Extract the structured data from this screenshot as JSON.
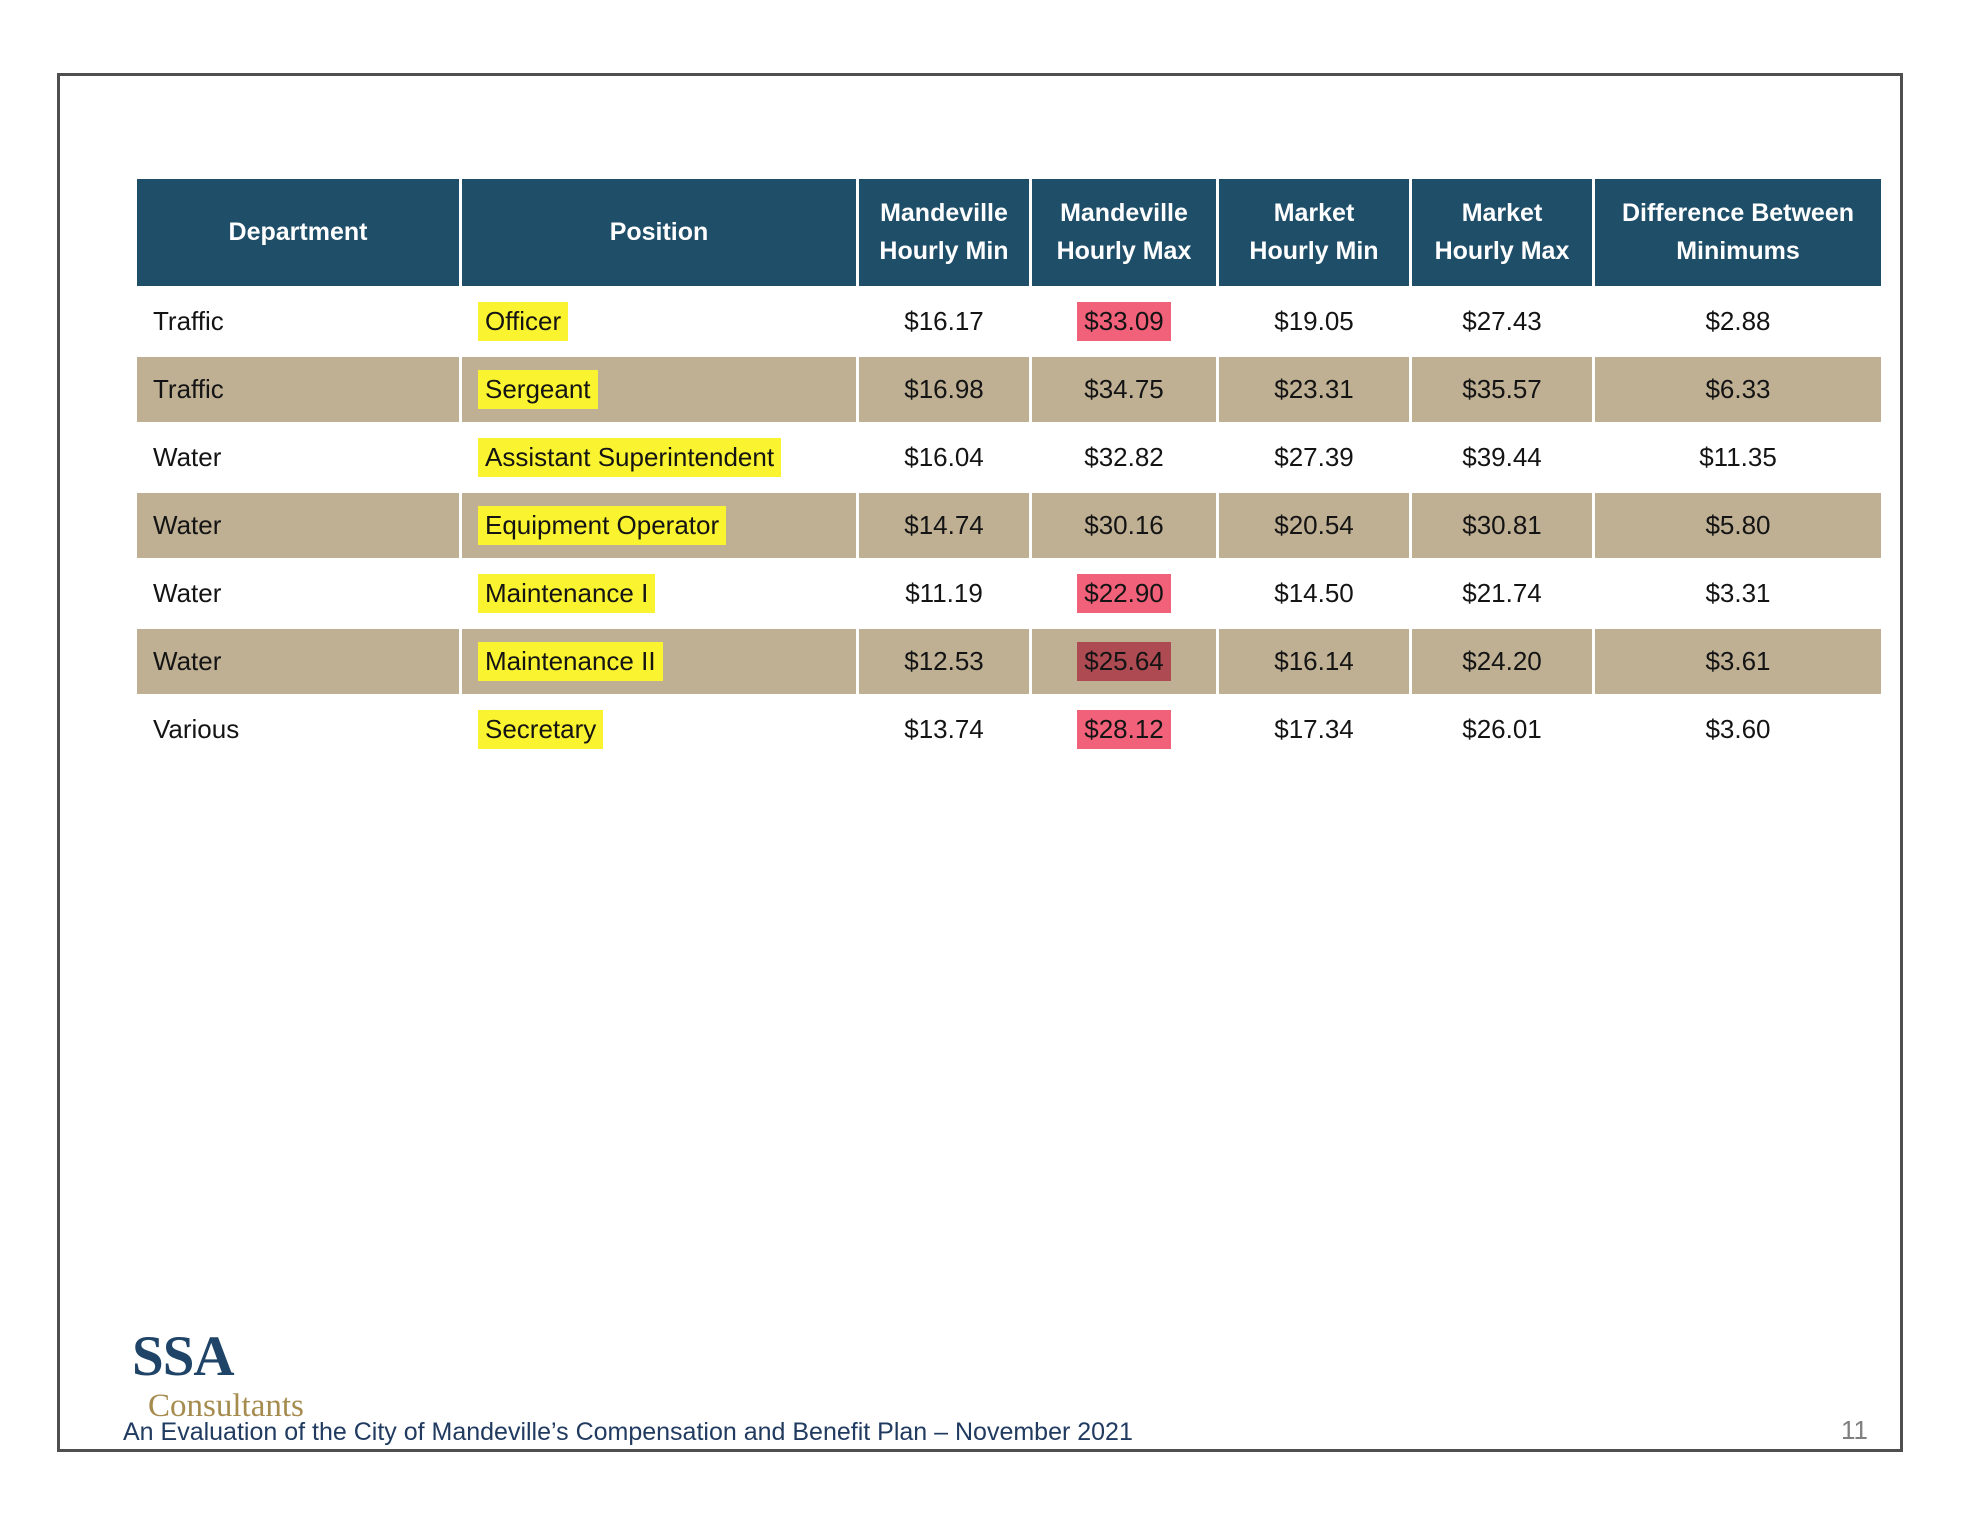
{
  "logo": {
    "primary": "SSA",
    "secondary": "Consultants"
  },
  "footer": {
    "text": "An Evaluation of the City of Mandeville’s Compensation and Benefit Plan – November 2021",
    "page_number": "11"
  },
  "table": {
    "headers": [
      "Department",
      "Position",
      "Mandeville\nHourly Min",
      "Mandeville\nHourly Max",
      "Market\nHourly Min",
      "Market\nHourly Max",
      "Difference Between\nMinimums"
    ],
    "rows": [
      {
        "department": "Traffic",
        "position": "Officer",
        "mand_min": "$16.17",
        "mand_max": "$33.09",
        "mkt_min": "$19.05",
        "mkt_max": "$27.43",
        "diff": "$2.88",
        "shaded": false,
        "max_highlight": "pink"
      },
      {
        "department": "Traffic",
        "position": "Sergeant",
        "mand_min": "$16.98",
        "mand_max": "$34.75",
        "mkt_min": "$23.31",
        "mkt_max": "$35.57",
        "diff": "$6.33",
        "shaded": true,
        "max_highlight": null
      },
      {
        "department": "Water",
        "position": "Assistant Superintendent",
        "mand_min": "$16.04",
        "mand_max": "$32.82",
        "mkt_min": "$27.39",
        "mkt_max": "$39.44",
        "diff": "$11.35",
        "shaded": false,
        "max_highlight": null
      },
      {
        "department": "Water",
        "position": "Equipment Operator",
        "mand_min": "$14.74",
        "mand_max": "$30.16",
        "mkt_min": "$20.54",
        "mkt_max": "$30.81",
        "diff": "$5.80",
        "shaded": true,
        "max_highlight": null
      },
      {
        "department": "Water",
        "position": "Maintenance I",
        "mand_min": "$11.19",
        "mand_max": "$22.90",
        "mkt_min": "$14.50",
        "mkt_max": "$21.74",
        "diff": "$3.31",
        "shaded": false,
        "max_highlight": "pink"
      },
      {
        "department": "Water",
        "position": "Maintenance II",
        "mand_min": "$12.53",
        "mand_max": "$25.64",
        "mkt_min": "$16.14",
        "mkt_max": "$24.20",
        "diff": "$3.61",
        "shaded": true,
        "max_highlight": "darkred"
      },
      {
        "department": "Various",
        "position": "Secretary",
        "mand_min": "$13.74",
        "mand_max": "$28.12",
        "mkt_min": "$17.34",
        "mkt_max": "$26.01",
        "diff": "$3.60",
        "shaded": false,
        "max_highlight": "pink"
      }
    ]
  },
  "colors": {
    "header_bg": "#1f4e69",
    "row_shaded": "#bfb094",
    "highlight_yellow": "#faf32f",
    "highlight_pink": "#f2617a",
    "highlight_dark_red": "#ae4a52",
    "footer_text": "#203a60",
    "logo_primary": "#1f4468",
    "logo_secondary": "#a58b4e",
    "page_number": "#7f7f7f",
    "frame_border": "#4f4f4f"
  }
}
